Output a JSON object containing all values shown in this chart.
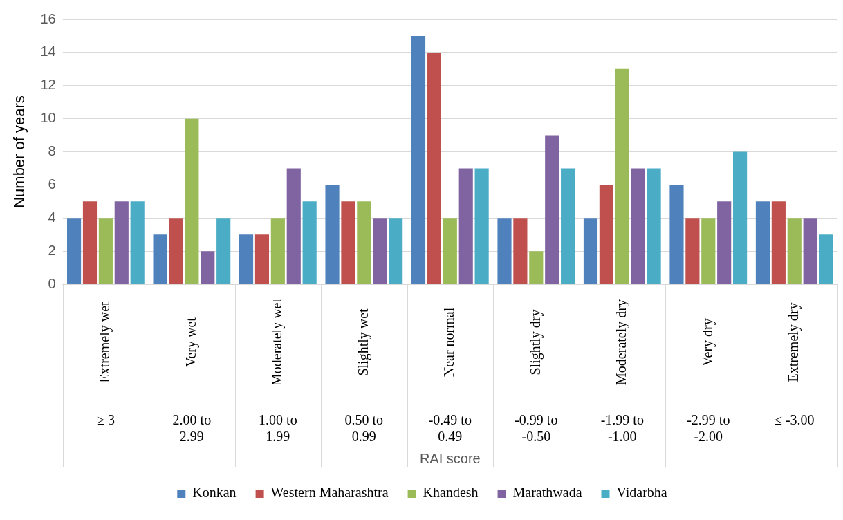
{
  "chart_data": {
    "type": "bar",
    "xlabel": "RAI score",
    "ylabel": "Number of years",
    "categories": [
      "Extremely wet",
      "Very wet",
      "Moderately wet",
      "Slightly wet",
      "Near normal",
      "Slightly dry",
      "Moderately dry",
      "Very dry",
      "Extremely dry"
    ],
    "series": [
      {
        "name": "Konkan",
        "color": "#4f81bd",
        "values": [
          4,
          3,
          3,
          6,
          15,
          4,
          4,
          6,
          5
        ]
      },
      {
        "name": "Western Maharashtra",
        "color": "#c0504d",
        "values": [
          5,
          4,
          3,
          5,
          14,
          4,
          6,
          4,
          5
        ]
      },
      {
        "name": "Khandesh",
        "color": "#9bbb59",
        "values": [
          4,
          10,
          4,
          5,
          4,
          2,
          13,
          4,
          4
        ]
      },
      {
        "name": "Marathwada",
        "color": "#8064a2",
        "values": [
          5,
          2,
          7,
          4,
          7,
          9,
          7,
          5,
          4
        ]
      },
      {
        "name": "Vidarbha",
        "color": "#4bacc6",
        "values": [
          5,
          4,
          5,
          4,
          7,
          7,
          7,
          8,
          3
        ]
      }
    ],
    "annotations": [
      "≥ 3",
      "2.00 to 2.99",
      "1.00 to 1.99",
      "0.50 to 0.99",
      "-0.49 to 0.49",
      "-0.99 to -0.50",
      "-1.99 to -1.00",
      "-2.99 to -2.00",
      "≤ -3.00"
    ],
    "ylim": [
      0,
      16
    ],
    "yticks": [
      0,
      2,
      4,
      6,
      8,
      10,
      12,
      14,
      16
    ],
    "grid": "y",
    "legend": "bottom"
  }
}
